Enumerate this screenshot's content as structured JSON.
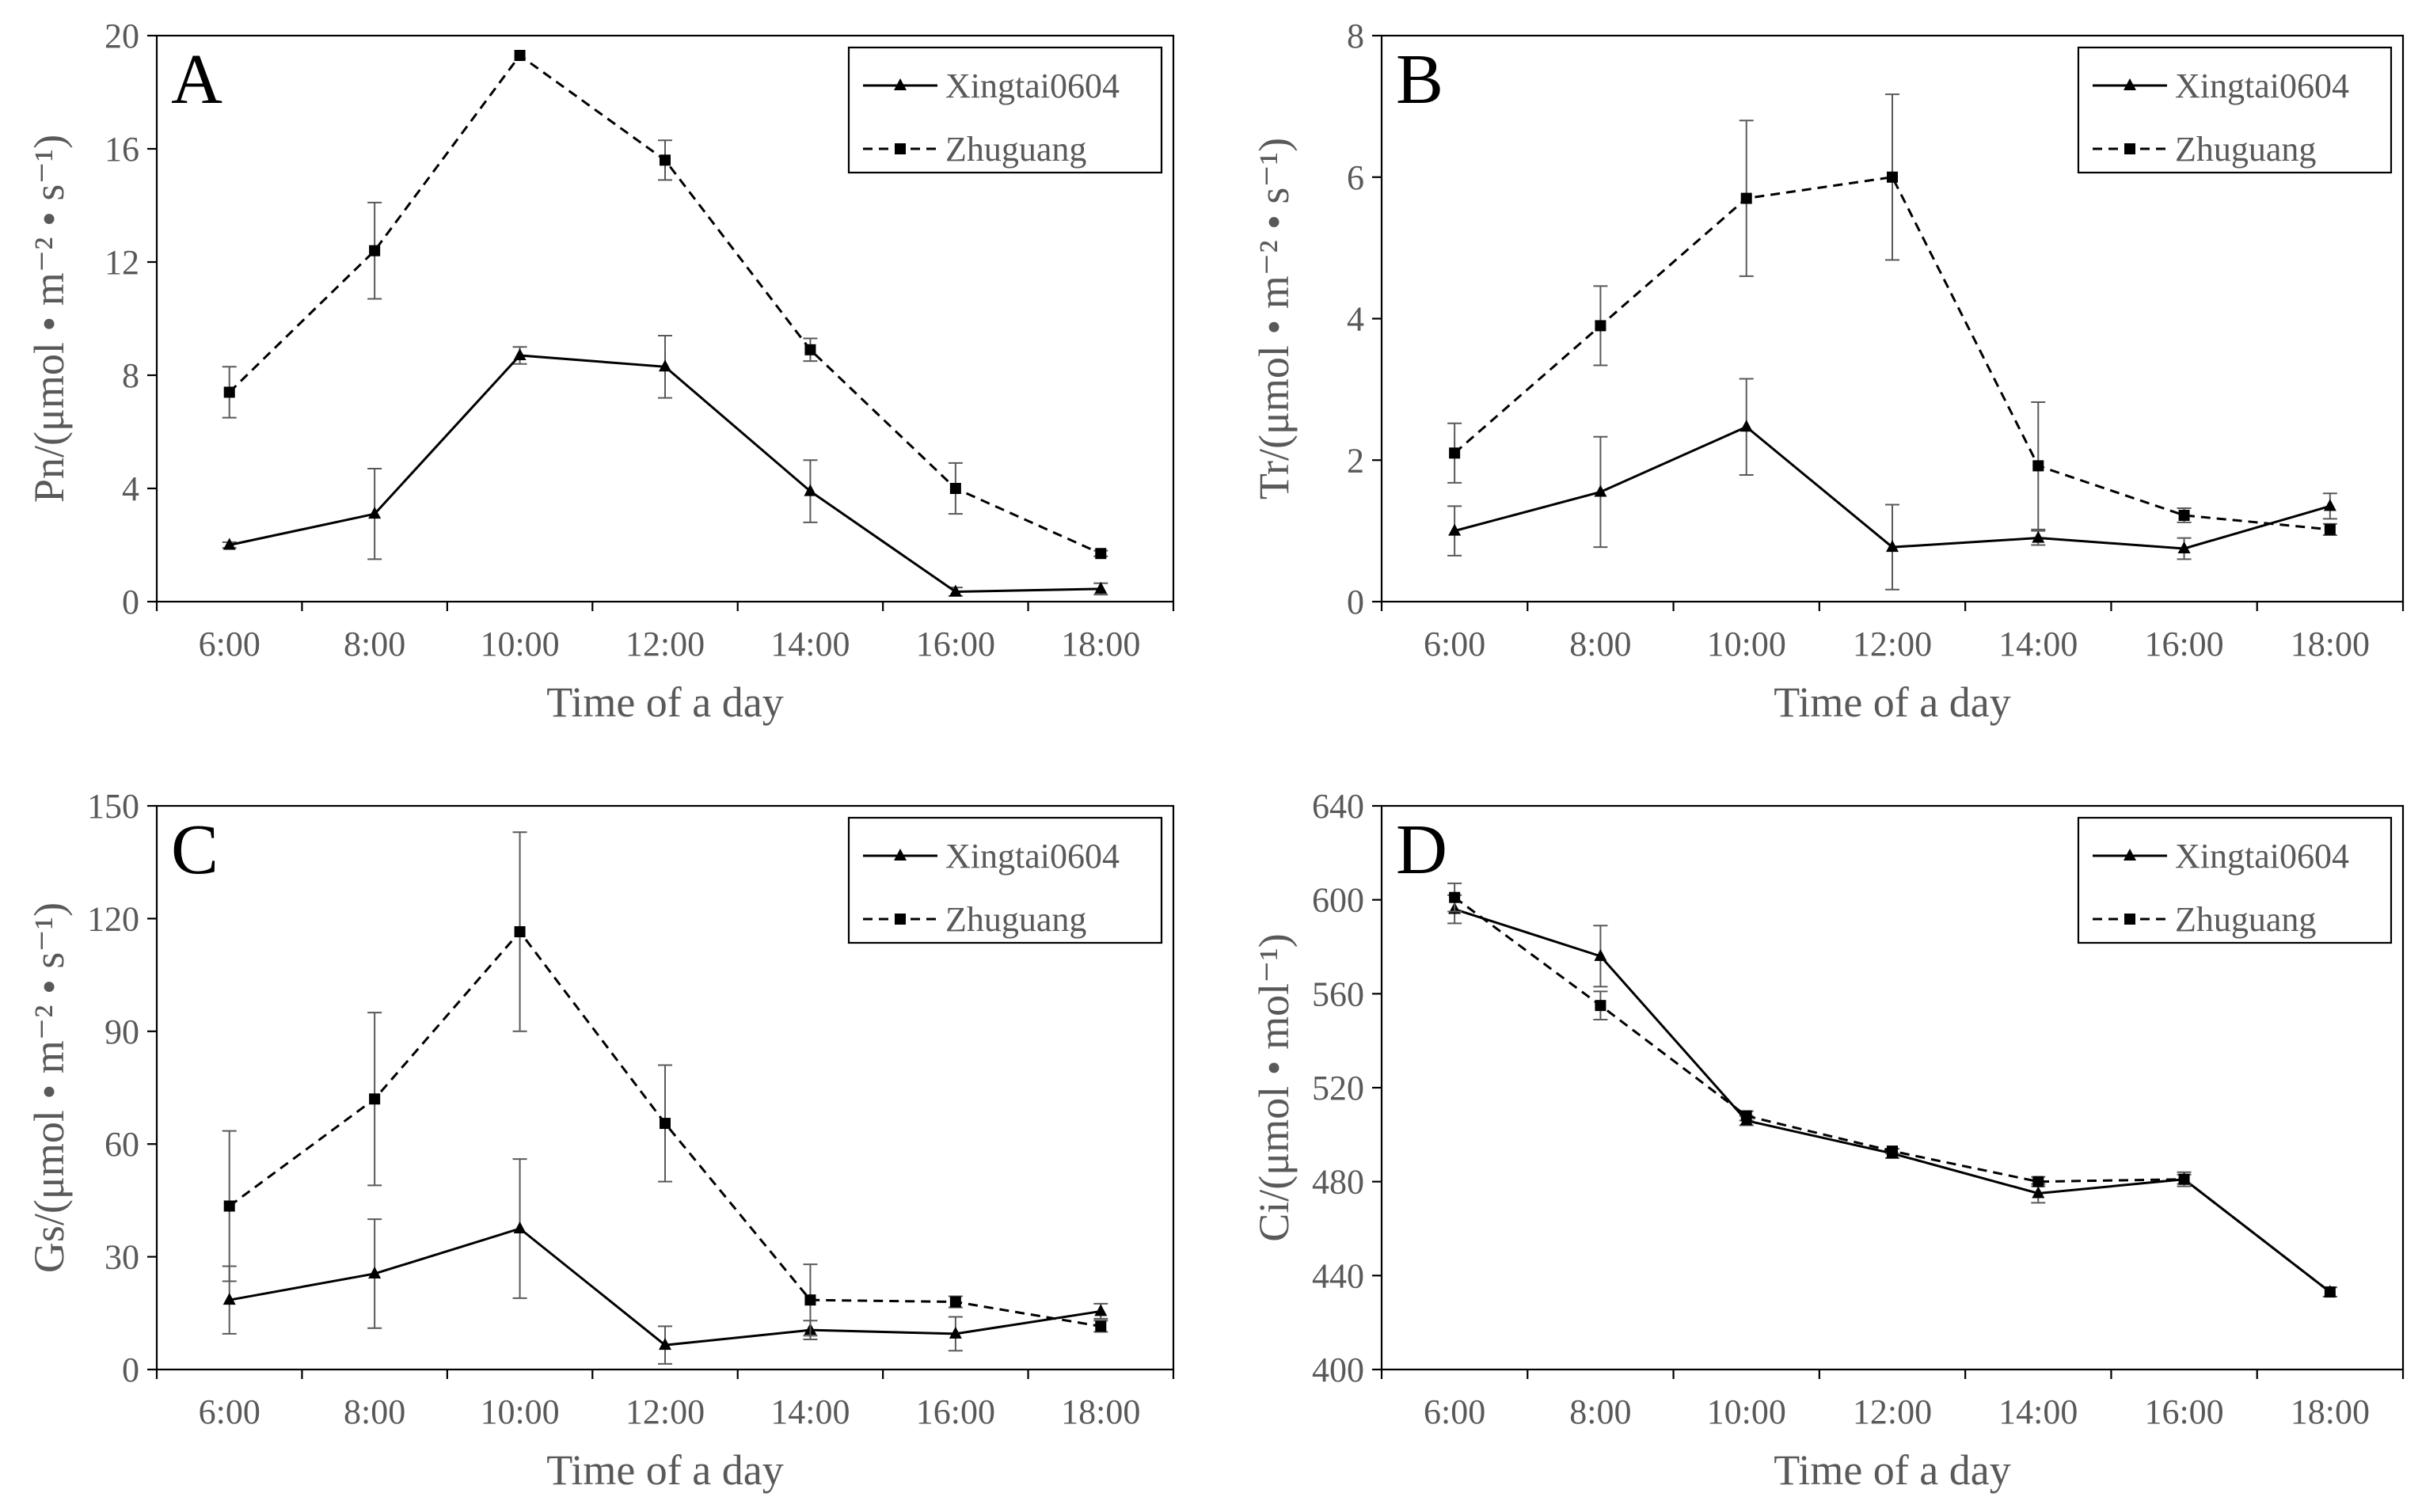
{
  "figure": {
    "xlabel": "Time of a day"
  },
  "chart_data": [
    {
      "panel": "A",
      "type": "line",
      "ylabel": "Pn/(μmol • m⁻² • s⁻¹)",
      "xlabel": "Time of a day",
      "categories": [
        "6:00",
        "8:00",
        "10:00",
        "12:00",
        "14:00",
        "16:00",
        "18:00"
      ],
      "ylim": [
        0,
        20
      ],
      "yticks": [
        0,
        4,
        8,
        12,
        16,
        20
      ],
      "legend_position": "top-right",
      "series": [
        {
          "name": "Xingtai0604",
          "marker": "triangle",
          "dash": "solid",
          "values": [
            2.0,
            3.1,
            8.7,
            8.3,
            3.9,
            0.35,
            0.45
          ],
          "errors": [
            0.1,
            1.6,
            0.3,
            1.1,
            1.1,
            0.15,
            0.2
          ]
        },
        {
          "name": "Zhuguang",
          "marker": "square",
          "dash": "dashed",
          "values": [
            7.4,
            12.4,
            19.3,
            15.6,
            8.9,
            4.0,
            1.7
          ],
          "errors": [
            0.9,
            1.7,
            0.0,
            0.7,
            0.4,
            0.9,
            0.1
          ]
        }
      ]
    },
    {
      "panel": "B",
      "type": "line",
      "ylabel": "Tr/(μmol • m⁻² • s⁻¹)",
      "xlabel": "Time of a day",
      "categories": [
        "6:00",
        "8:00",
        "10:00",
        "12:00",
        "14:00",
        "16:00",
        "18:00"
      ],
      "ylim": [
        0,
        8
      ],
      "yticks": [
        0,
        2,
        4,
        6,
        8
      ],
      "legend_position": "top-right",
      "series": [
        {
          "name": "Xingtai0604",
          "marker": "triangle",
          "dash": "solid",
          "values": [
            1.0,
            1.55,
            2.47,
            0.77,
            0.9,
            0.75,
            1.35
          ],
          "errors": [
            0.35,
            0.78,
            0.68,
            0.6,
            0.1,
            0.15,
            0.18
          ]
        },
        {
          "name": "Zhuguang",
          "marker": "square",
          "dash": "dashed",
          "values": [
            2.1,
            3.9,
            5.7,
            6.0,
            1.92,
            1.22,
            1.02
          ],
          "errors": [
            0.42,
            0.56,
            1.1,
            1.17,
            0.9,
            0.1,
            0.08
          ]
        }
      ]
    },
    {
      "panel": "C",
      "type": "line",
      "ylabel": "Gs/(μmol • m⁻² • s⁻¹)",
      "xlabel": "Time of a day",
      "categories": [
        "6:00",
        "8:00",
        "10:00",
        "12:00",
        "14:00",
        "16:00",
        "18:00"
      ],
      "ylim": [
        0,
        150
      ],
      "yticks": [
        0,
        30,
        60,
        90,
        120,
        150
      ],
      "legend_position": "top-right",
      "series": [
        {
          "name": "Xingtai0604",
          "marker": "triangle",
          "dash": "solid",
          "values": [
            18.5,
            25.5,
            37.5,
            6.5,
            10.5,
            9.5,
            15.5
          ],
          "errors": [
            9.0,
            14.5,
            18.5,
            5.0,
            2.5,
            4.5,
            2.0
          ]
        },
        {
          "name": "Zhuguang",
          "marker": "square",
          "dash": "dashed",
          "values": [
            43.5,
            72.0,
            116.5,
            65.5,
            18.5,
            18.0,
            11.5
          ],
          "errors": [
            20.0,
            23.0,
            26.5,
            15.5,
            9.5,
            1.5,
            1.5
          ]
        }
      ]
    },
    {
      "panel": "D",
      "type": "line",
      "ylabel": "Ci/(μmol • mol⁻¹)",
      "xlabel": "Time of a day",
      "categories": [
        "6:00",
        "8:00",
        "10:00",
        "12:00",
        "14:00",
        "16:00",
        "18:00"
      ],
      "ylim": [
        400,
        640
      ],
      "yticks": [
        400,
        440,
        480,
        520,
        560,
        600,
        640
      ],
      "legend_position": "top-right",
      "series": [
        {
          "name": "Xingtai0604",
          "marker": "triangle",
          "dash": "solid",
          "values": [
            596,
            576,
            506,
            492,
            475,
            481,
            433
          ],
          "errors": [
            6,
            13,
            2,
            2,
            4,
            3,
            2
          ]
        },
        {
          "name": "Zhuguang",
          "marker": "square",
          "dash": "dashed",
          "values": [
            601,
            555,
            508,
            493,
            480,
            481,
            433
          ],
          "errors": [
            6,
            6,
            2,
            1,
            2,
            2,
            2
          ]
        }
      ]
    }
  ]
}
